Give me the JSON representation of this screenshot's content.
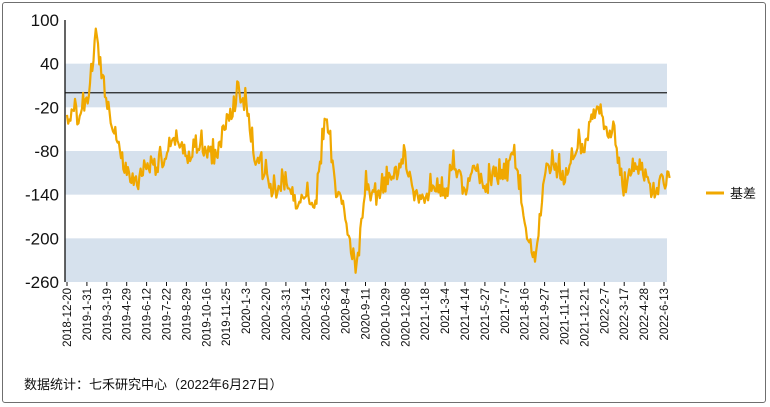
{
  "chart_data": {
    "type": "line",
    "title": "",
    "xlabel": "",
    "ylabel": "",
    "ylim": [
      -260,
      100
    ],
    "yticks": [
      100,
      40,
      -20,
      -80,
      -140,
      -200,
      -260
    ],
    "shaded_bands": [
      [
        -20,
        40
      ],
      [
        -140,
        -80
      ],
      [
        -260,
        -200
      ]
    ],
    "reference_line": 0,
    "legend_position": "right",
    "x_tick_labels": [
      "2018-12-20",
      "2019-1-31",
      "2019-3-19",
      "2019-4-29",
      "2019-6-12",
      "2019-7-22",
      "2019-8-29",
      "2019-10-16",
      "2019-11-25",
      "2020-1-3",
      "2020-2-20",
      "2020-3-31",
      "2020-5-14",
      "2020-6-23",
      "2020-8-4",
      "2020-9-11",
      "2020-10-29",
      "2020-12-08",
      "2021-1-18",
      "2021-3-4",
      "2021-4-14",
      "2021-5-27",
      "2021-7-7",
      "2021-8-16",
      "2021-9-27",
      "2021-11-11",
      "2021-12-21",
      "2022-2-7",
      "2022-3-17",
      "2022-4-28",
      "2022-6-13"
    ],
    "series": [
      {
        "name": "基差",
        "color": "#f0a800",
        "points": [
          [
            "2018-12-20",
            -35
          ],
          [
            "2019-1-10",
            -30
          ],
          [
            "2019-1-31",
            -18
          ],
          [
            "2019-2-21",
            78
          ],
          [
            "2019-3-19",
            -10
          ],
          [
            "2019-4-8",
            -58
          ],
          [
            "2019-4-29",
            -112
          ],
          [
            "2019-5-20",
            -125
          ],
          [
            "2019-6-12",
            -95
          ],
          [
            "2019-7-1",
            -100
          ],
          [
            "2019-7-22",
            -90
          ],
          [
            "2019-8-12",
            -60
          ],
          [
            "2019-8-29",
            -90
          ],
          [
            "2019-9-20",
            -70
          ],
          [
            "2019-10-16",
            -80
          ],
          [
            "2019-11-4",
            -88
          ],
          [
            "2019-11-25",
            -40
          ],
          [
            "2019-12-16",
            -5
          ],
          [
            "2020-1-3",
            -15
          ],
          [
            "2020-1-20",
            -80
          ],
          [
            "2020-2-20",
            -115
          ],
          [
            "2020-3-10",
            -140
          ],
          [
            "2020-3-31",
            -120
          ],
          [
            "2020-4-22",
            -150
          ],
          [
            "2020-5-14",
            -130
          ],
          [
            "2020-6-3",
            -160
          ],
          [
            "2020-6-23",
            -25
          ],
          [
            "2020-7-14",
            -130
          ],
          [
            "2020-8-4",
            -170
          ],
          [
            "2020-8-25",
            -245
          ],
          [
            "2020-9-11",
            -130
          ],
          [
            "2020-10-8",
            -150
          ],
          [
            "2020-10-29",
            -125
          ],
          [
            "2020-11-18",
            -110
          ],
          [
            "2020-12-08",
            -90
          ],
          [
            "2020-12-28",
            -140
          ],
          [
            "2021-1-18",
            -150
          ],
          [
            "2021-2-8",
            -120
          ],
          [
            "2021-3-4",
            -145
          ],
          [
            "2021-3-24",
            -95
          ],
          [
            "2021-4-14",
            -140
          ],
          [
            "2021-5-6",
            -100
          ],
          [
            "2021-5-27",
            -130
          ],
          [
            "2021-6-16",
            -110
          ],
          [
            "2021-7-7",
            -120
          ],
          [
            "2021-7-26",
            -80
          ],
          [
            "2021-8-16",
            -180
          ],
          [
            "2021-9-6",
            -235
          ],
          [
            "2021-9-27",
            -110
          ],
          [
            "2021-10-20",
            -100
          ],
          [
            "2021-11-11",
            -115
          ],
          [
            "2021-12-1",
            -75
          ],
          [
            "2021-12-21",
            -70
          ],
          [
            "2022-1-11",
            -30
          ],
          [
            "2022-1-24",
            -7
          ],
          [
            "2022-2-7",
            -55
          ],
          [
            "2022-2-24",
            -45
          ],
          [
            "2022-3-17",
            -135
          ],
          [
            "2022-4-7",
            -95
          ],
          [
            "2022-4-28",
            -110
          ],
          [
            "2022-5-18",
            -135
          ],
          [
            "2022-6-13",
            -120
          ],
          [
            "2022-6-27",
            -112
          ]
        ]
      }
    ]
  },
  "source_note": "数据统计：七禾研究中心（2022年6月27日）"
}
